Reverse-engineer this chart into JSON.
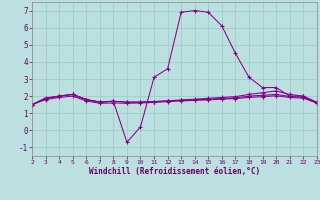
{
  "xlabel": "Windchill (Refroidissement éolien,°C)",
  "background_color": "#bce0e0",
  "grid_color": "#9ecece",
  "line_color": "#880088",
  "x_ticks": [
    2,
    3,
    4,
    5,
    6,
    7,
    8,
    9,
    10,
    11,
    12,
    13,
    14,
    15,
    16,
    17,
    18,
    19,
    20,
    21,
    22,
    23
  ],
  "ylim": [
    -1.5,
    7.5
  ],
  "xlim": [
    2,
    23
  ],
  "yticks": [
    -1,
    0,
    1,
    2,
    3,
    4,
    5,
    6,
    7
  ],
  "lines": [
    {
      "x": [
        2,
        3,
        4,
        5,
        6,
        7,
        8,
        9,
        10,
        11,
        12,
        13,
        14,
        15,
        16,
        17,
        18,
        19,
        20,
        21,
        22,
        23
      ],
      "y": [
        1.5,
        1.9,
        2.0,
        2.1,
        1.8,
        1.65,
        1.7,
        -0.7,
        0.2,
        3.1,
        3.6,
        6.9,
        7.0,
        6.9,
        6.1,
        4.5,
        3.1,
        2.5,
        2.5,
        2.0,
        2.0,
        1.6
      ]
    },
    {
      "x": [
        2,
        3,
        4,
        5,
        6,
        7,
        8,
        9,
        10,
        11,
        12,
        13,
        14,
        15,
        16,
        17,
        18,
        19,
        20,
        21,
        22,
        23
      ],
      "y": [
        1.5,
        1.85,
        2.0,
        2.1,
        1.8,
        1.65,
        1.7,
        1.65,
        1.65,
        1.68,
        1.72,
        1.78,
        1.82,
        1.87,
        1.92,
        1.97,
        2.1,
        2.2,
        2.3,
        2.1,
        2.0,
        1.65
      ]
    },
    {
      "x": [
        2,
        3,
        4,
        5,
        6,
        7,
        8,
        9,
        10,
        11,
        12,
        13,
        14,
        15,
        16,
        17,
        18,
        19,
        20,
        21,
        22,
        23
      ],
      "y": [
        1.5,
        1.85,
        2.0,
        2.1,
        1.8,
        1.65,
        1.7,
        1.65,
        1.65,
        1.68,
        1.72,
        1.75,
        1.78,
        1.82,
        1.86,
        1.9,
        2.0,
        2.05,
        2.1,
        1.98,
        1.93,
        1.6
      ]
    },
    {
      "x": [
        2,
        3,
        4,
        5,
        6,
        7,
        8,
        9,
        10,
        11,
        12,
        13,
        14,
        15,
        16,
        17,
        18,
        19,
        20,
        21,
        22,
        23
      ],
      "y": [
        1.5,
        1.8,
        1.92,
        2.0,
        1.72,
        1.58,
        1.6,
        1.58,
        1.6,
        1.63,
        1.68,
        1.72,
        1.75,
        1.78,
        1.82,
        1.86,
        1.92,
        1.97,
        2.02,
        1.92,
        1.88,
        1.6
      ]
    }
  ]
}
